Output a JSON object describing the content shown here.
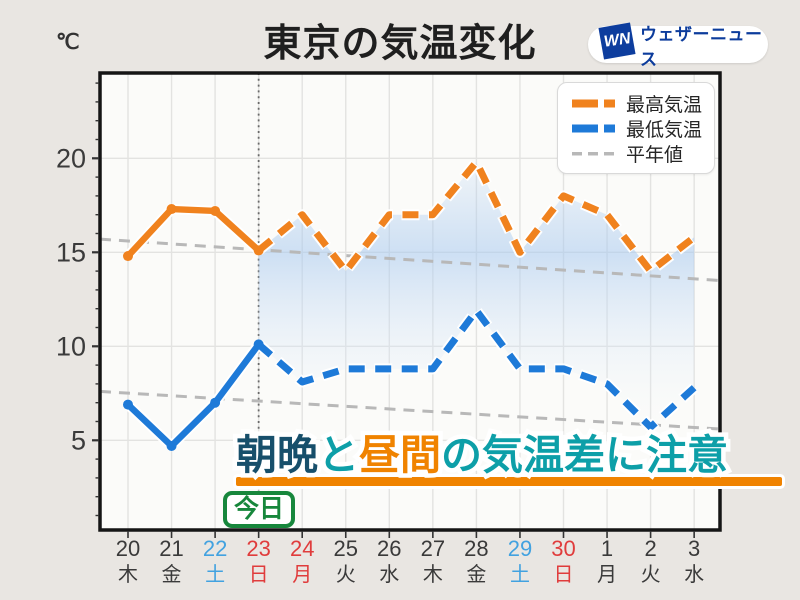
{
  "header": {
    "title": "東京の気温変化",
    "degree_unit": "℃",
    "logo": {
      "mark": "WN",
      "name": "ウェザーニュース",
      "brand_color": "#0d3d9e"
    }
  },
  "legend": {
    "items": [
      {
        "label": "最高気温",
        "color": "#f0821e",
        "style": "thick-dash"
      },
      {
        "label": "最低気温",
        "color": "#1e7ad8",
        "style": "thick-dash"
      },
      {
        "label": "平年値",
        "color": "#b8b8b8",
        "style": "thin-dash"
      }
    ]
  },
  "overlay": {
    "segments": [
      {
        "text": "朝晩",
        "color": "#174f6b"
      },
      {
        "text": "と",
        "color": "#0d9fa8"
      },
      {
        "text": "昼間",
        "color": "#f08300"
      },
      {
        "text": "の気温差に注意",
        "color": "#0d9fa8"
      }
    ],
    "underline_color": "#f08300",
    "today_label": "今日",
    "today_color": "#17873c"
  },
  "chart_data": {
    "type": "line",
    "title": "東京の気温変化",
    "ylabel": "℃",
    "yticks": [
      5,
      10,
      15,
      20
    ],
    "ylim": [
      0.2,
      24.6
    ],
    "grid": true,
    "legend_position": "top-right",
    "today_index": 3,
    "x_categories": [
      {
        "day": "20",
        "weekday": "木",
        "color": "#3a3a3a"
      },
      {
        "day": "21",
        "weekday": "金",
        "color": "#3a3a3a"
      },
      {
        "day": "22",
        "weekday": "土",
        "color": "#42a2e0"
      },
      {
        "day": "23",
        "weekday": "日",
        "color": "#e03c3c"
      },
      {
        "day": "24",
        "weekday": "月",
        "color": "#e03c3c"
      },
      {
        "day": "25",
        "weekday": "火",
        "color": "#3a3a3a"
      },
      {
        "day": "26",
        "weekday": "水",
        "color": "#3a3a3a"
      },
      {
        "day": "27",
        "weekday": "木",
        "color": "#3a3a3a"
      },
      {
        "day": "28",
        "weekday": "金",
        "color": "#3a3a3a"
      },
      {
        "day": "29",
        "weekday": "土",
        "color": "#42a2e0"
      },
      {
        "day": "30",
        "weekday": "日",
        "color": "#e03c3c"
      },
      {
        "day": "1",
        "weekday": "月",
        "color": "#3a3a3a"
      },
      {
        "day": "2",
        "weekday": "火",
        "color": "#3a3a3a"
      },
      {
        "day": "3",
        "weekday": "水",
        "color": "#3a3a3a"
      }
    ],
    "series": [
      {
        "name": "最高気温",
        "color": "#f0821e",
        "solid_until_index": 3,
        "values": [
          14.8,
          17.3,
          17.2,
          15.1,
          17.0,
          14.0,
          17.0,
          17.0,
          19.8,
          15.0,
          18.0,
          17.0,
          14.0,
          15.8
        ]
      },
      {
        "name": "最低気温",
        "color": "#1e7ad8",
        "solid_until_index": 3,
        "values": [
          6.9,
          4.7,
          7.0,
          10.1,
          8.1,
          8.8,
          8.8,
          8.8,
          11.9,
          8.8,
          8.8,
          8.0,
          5.7,
          7.8
        ]
      },
      {
        "name": "平年値(最高)",
        "color": "#b8b8b8",
        "line": "normal",
        "start": 15.7,
        "end": 13.5
      },
      {
        "name": "平年値(最低)",
        "color": "#b8b8b8",
        "line": "normal",
        "start": 7.6,
        "end": 5.6
      }
    ]
  }
}
